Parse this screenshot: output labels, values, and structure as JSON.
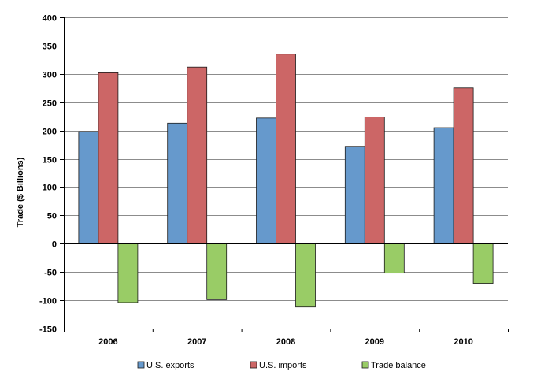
{
  "chart_data": {
    "type": "bar",
    "title": "",
    "xlabel": "",
    "ylabel": "Trade ($ Billions)",
    "categories": [
      "2006",
      "2007",
      "2008",
      "2009",
      "2010"
    ],
    "series": [
      {
        "name": "U.S. exports",
        "color": "#6699cc",
        "values": [
          198,
          213,
          222,
          172,
          205
        ]
      },
      {
        "name": "U.S. imports",
        "color": "#cc6666",
        "values": [
          302,
          312,
          335,
          224,
          275
        ]
      },
      {
        "name": "Trade balance",
        "color": "#99cc66",
        "values": [
          -104,
          -99,
          -112,
          -52,
          -70
        ]
      }
    ],
    "ylim": [
      -150,
      400
    ],
    "yticks": [
      400,
      350,
      300,
      250,
      200,
      150,
      100,
      50,
      0,
      -50,
      -100,
      -150
    ],
    "grid": true,
    "legend_position": "bottom"
  }
}
